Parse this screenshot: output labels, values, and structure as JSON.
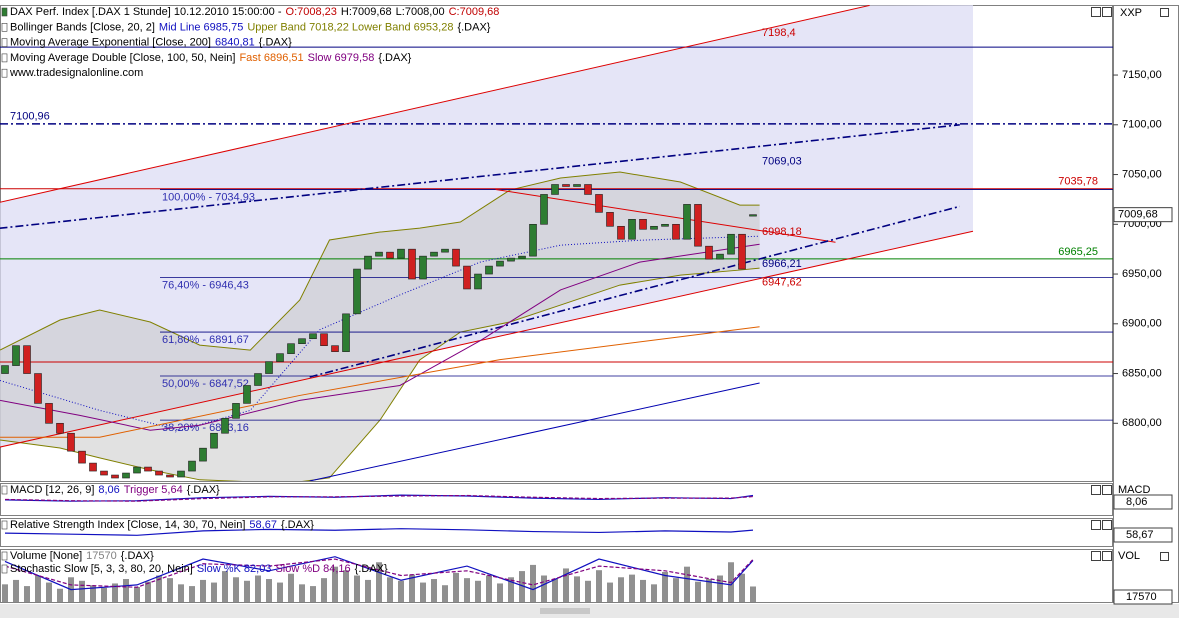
{
  "chart_data": {
    "type": "candlestick",
    "axis_title": "XXP",
    "legend_lines": [
      [
        {
          "text": "DAX Perf. Index [.DAX  1 Stunde] 10.12.2010 15:00:00 -",
          "color": "#000000"
        },
        {
          "text": "O:7008,23",
          "color": "#c00000"
        },
        {
          "text": "H:7009,68",
          "color": "#000000"
        },
        {
          "text": "L:7008,00",
          "color": "#000000"
        },
        {
          "text": "C:7009,68",
          "color": "#c00000"
        }
      ],
      [
        {
          "text": "Bollinger Bands [Close, 20, 2]",
          "color": "#000000"
        },
        {
          "text": "Mid Line 6985,75",
          "color": "#1010c0"
        },
        {
          "text": "Upper Band 7018,22 Lower Band 6953,28",
          "color": "#808000"
        },
        {
          "text": "{.DAX}",
          "color": "#000000"
        }
      ],
      [
        {
          "text": "Moving Average Exponential [Close, 200]",
          "color": "#000000"
        },
        {
          "text": "6840,81",
          "color": "#1010c0"
        },
        {
          "text": "{.DAX}",
          "color": "#000000"
        }
      ],
      [
        {
          "text": "Moving Average Double [Close, 100, 50, Nein]",
          "color": "#000000"
        },
        {
          "text": "Fast 6896,51",
          "color": "#e06000"
        },
        {
          "text": "Slow 6979,58",
          "color": "#800080"
        },
        {
          "text": "{.DAX}",
          "color": "#000000"
        }
      ],
      [
        {
          "text": "www.tradesignalonline.com",
          "color": "#000000"
        }
      ]
    ],
    "ylim": [
      6742,
      7220.4
    ],
    "yticks": [
      {
        "value": 6800,
        "label": "6800,00"
      },
      {
        "value": 6850,
        "label": "6850,00"
      },
      {
        "value": 6900,
        "label": "6900,00"
      },
      {
        "value": 6950,
        "label": "6950,00"
      },
      {
        "value": 7000,
        "label": "7000,00"
      },
      {
        "value": 7050,
        "label": "7050,00"
      },
      {
        "value": 7100,
        "label": "7100,00"
      },
      {
        "value": 7150,
        "label": "7150,00"
      }
    ],
    "up_color": "#2e7d32",
    "down_color": "#d02020",
    "categories": [
      null,
      null,
      null,
      null,
      null,
      null,
      null,
      null,
      null,
      null,
      null,
      null,
      null,
      null,
      null,
      null,
      null,
      null,
      null,
      null,
      null,
      null,
      null,
      null,
      null,
      null,
      null,
      null,
      null,
      null,
      null,
      null,
      null,
      null,
      null,
      null,
      null,
      null,
      null,
      null,
      null,
      null,
      null,
      null,
      null,
      null,
      null,
      null,
      null,
      null,
      null,
      null,
      null,
      null,
      null,
      null,
      null,
      null,
      null,
      null,
      null,
      null,
      null,
      null,
      null,
      null,
      null,
      null,
      null
    ],
    "open": [
      6850,
      6858,
      6878,
      6850,
      6820,
      6800,
      6790,
      6772,
      6760,
      6752,
      6748,
      6745,
      6750,
      6756,
      6752,
      6748,
      6746,
      6752,
      6762,
      6775,
      6790,
      6805,
      6820,
      6838,
      6850,
      6862,
      6870,
      6880,
      6885,
      6890,
      6878,
      6872,
      6910,
      6955,
      6968,
      6972,
      6966,
      6975,
      6945,
      6968,
      6972,
      6975,
      6958,
      6935,
      6950,
      6958,
      6963,
      6966,
      6968,
      7000,
      7030,
      7040,
      7038,
      7040,
      7030,
      7012,
      6998,
      6985,
      7005,
      6995,
      6998,
      7000,
      6985,
      7020,
      6978,
      6965,
      6970,
      6990,
      7008.23
    ],
    "close": [
      6858,
      6878,
      6850,
      6820,
      6800,
      6790,
      6772,
      6760,
      6752,
      6748,
      6745,
      6750,
      6756,
      6752,
      6748,
      6746,
      6752,
      6762,
      6775,
      6790,
      6805,
      6820,
      6838,
      6850,
      6862,
      6870,
      6880,
      6885,
      6890,
      6878,
      6872,
      6910,
      6955,
      6968,
      6972,
      6966,
      6975,
      6945,
      6968,
      6972,
      6975,
      6958,
      6935,
      6950,
      6958,
      6963,
      6966,
      6968,
      7000,
      7030,
      7040,
      7038,
      7040,
      7030,
      7012,
      6998,
      6985,
      7005,
      6995,
      6998,
      7000,
      6985,
      7020,
      6978,
      6965,
      6970,
      6990,
      6955,
      7009.68
    ],
    "levels": [
      {
        "value": 7178.1,
        "color": "#000080"
      },
      {
        "value": 7100.96,
        "label": "7100,96",
        "color": "#000080",
        "dash": true,
        "label_side": "left"
      },
      {
        "value": 7035.78,
        "label": "7035,78",
        "color": "#cc0000",
        "label_side": "right"
      },
      {
        "value": 6965.25,
        "label": "6965,25",
        "color": "#008000",
        "label_side": "right"
      },
      {
        "value": 6861.6,
        "color": "#cc0000"
      }
    ],
    "fib_color": "#000080",
    "fib_label_color": "#3030b0",
    "fib_levels": [
      {
        "value": 7034.93,
        "label": "100,00% - 7034,93"
      },
      {
        "value": 6946.43,
        "label": "76,40% - 6946,43"
      },
      {
        "value": 6891.67,
        "label": "61,80% - 6891,67"
      },
      {
        "value": 6847.52,
        "label": "50,00% - 6847,52"
      },
      {
        "value": 6803.16,
        "label": "38,20% - 6803,16"
      }
    ],
    "point_labels": [
      {
        "value": 7198.4,
        "label": "7198,4",
        "color": "#cc0000"
      },
      {
        "value": 7069.03,
        "label": "7069,03",
        "color": "#000080"
      },
      {
        "value": 6998.18,
        "label": "6998,18",
        "color": "#cc0000"
      },
      {
        "value": 6966.21,
        "label": "6966,21",
        "color": "#000080"
      },
      {
        "value": 6947.62,
        "label": "6947,62",
        "color": "#cc0000"
      }
    ],
    "last_price": {
      "value": 7009.68,
      "label": "7009,68"
    },
    "trendlines": [
      {
        "color": "#dd0000",
        "points": [
          [
            -0.5,
            7022
          ],
          [
            78.6,
            7220
          ]
        ]
      },
      {
        "color": "#dd0000",
        "points": [
          [
            -0.5,
            6776
          ],
          [
            88,
            6993
          ]
        ]
      },
      {
        "color": "#dd0000",
        "points": [
          [
            44.6,
            7035
          ],
          [
            75.5,
            6982
          ]
        ]
      },
      {
        "color": "#000080",
        "dash": true,
        "points": [
          [
            -0.5,
            6996
          ],
          [
            86.8,
            7100
          ]
        ]
      },
      {
        "color": "#000080",
        "dash": true,
        "points": [
          [
            27.7,
            6846.5
          ],
          [
            86.8,
            7018
          ]
        ]
      }
    ],
    "bollinger": {
      "color": "#808000",
      "x": [
        -0.45,
        5,
        8.6,
        13.2,
        17.7,
        22.3,
        26.8,
        29.5,
        34.1,
        37.7,
        41.4,
        45.9,
        50.5,
        55.9,
        61.4,
        66.8,
        68.6
      ],
      "upper": [
        6873.6,
        6903.8,
        6913.8,
        6901.8,
        6878.6,
        6873.6,
        6923.9,
        6984.2,
        6992.2,
        6996.2,
        7002.3,
        7034.4,
        7046.5,
        7052.5,
        7042.5,
        7019.3,
        7019.3
      ],
      "lower": [
        6783.2,
        6775.2,
        6765.2,
        6753.2,
        6743.2,
        6741.2,
        6741.2,
        6745.2,
        6803.3,
        6863.6,
        6891.7,
        6901.8,
        6918.8,
        6938.9,
        6948.9,
        6954,
        6956
      ]
    },
    "overlays": [
      {
        "color": "#1010c0",
        "dash": true,
        "x": [
          -0.45,
          8.6,
          15.9,
          22.3,
          28.6,
          35.9,
          43.2,
          50.5,
          57.7,
          68.6
        ],
        "values": [
          6843,
          6813,
          6793,
          6813,
          6894,
          6929,
          6962,
          6979,
          6984,
          6988
        ]
      },
      {
        "color": "#800080",
        "x": [
          -0.45,
          6.8,
          13.2,
          17.7,
          26.8,
          35.9,
          43.2,
          50.5,
          57.7,
          68.6
        ],
        "values": [
          6823,
          6808,
          6793,
          6798,
          6823,
          6838,
          6883,
          6934,
          6962,
          6980
        ]
      },
      {
        "color": "#e06000",
        "x": [
          -0.45,
          8.6,
          26.8,
          45,
          68.6
        ],
        "values": [
          6786,
          6786,
          6828,
          6864,
          6897
        ]
      },
      {
        "color": "#0000b0",
        "x": [
          27.7,
          68.6
        ],
        "values": [
          6742,
          6840.5
        ]
      }
    ],
    "panels": [
      {
        "axis_title": "MACD",
        "value_label": "8,06",
        "legend_lines": [
          [
            {
              "text": "MACD [12, 26, 9]",
              "color": "#000000"
            },
            {
              "text": "8,06",
              "color": "#1010c0"
            },
            {
              "text": "Trigger 5,64",
              "color": "#800080"
            },
            {
              "text": "{.DAX}",
              "color": "#000000"
            }
          ]
        ],
        "lim": [
          -30,
          30
        ],
        "x": [
          0,
          6,
          12,
          18,
          24,
          30,
          36,
          42,
          48,
          54,
          60,
          66,
          68
        ],
        "series": [
          {
            "color": "#1010c0",
            "values": [
              -2,
              -5,
              -4,
              3,
              6,
              4,
              9,
              7,
              2,
              -1,
              3,
              1,
              8.06
            ]
          },
          {
            "color": "#800080",
            "dash": true,
            "values": [
              -1,
              -4,
              -5,
              1,
              5,
              5,
              7,
              8,
              4,
              1,
              2,
              2,
              5.64
            ]
          }
        ]
      },
      {
        "value_label": "58,67",
        "legend_lines": [
          [
            {
              "text": "Relative Strength Index [Close, 14, 30, 70, Nein]",
              "color": "#000000"
            },
            {
              "text": "58,67",
              "color": "#1010c0"
            },
            {
              "text": "{.DAX}",
              "color": "#000000"
            }
          ]
        ],
        "lim": [
          0,
          100
        ],
        "x": [
          0,
          6,
          12,
          18,
          24,
          30,
          36,
          42,
          48,
          54,
          60,
          66,
          68
        ],
        "series": [
          {
            "color": "#1010c0",
            "values": [
              45,
              40,
              35,
              55,
              62,
              58,
              65,
              60,
              52,
              48,
              55,
              50,
              58.67
            ]
          }
        ]
      },
      {
        "axis_title": "VOL",
        "value_label": "17570",
        "legend_lines": [
          [
            {
              "text": "Volume [None]",
              "color": "#000000"
            },
            {
              "text": "17570",
              "color": "#808080"
            },
            {
              "text": "{.DAX}",
              "color": "#000000"
            }
          ],
          [
            {
              "text": "Stochastic Slow [5, 3, 3, 80, 20, Nein]",
              "color": "#000000"
            },
            {
              "text": "Slow %K 82,03",
              "color": "#1010c0"
            },
            {
              "text": "Slow %D 84,16",
              "color": "#800080"
            },
            {
              "text": "{.DAX}",
              "color": "#000000"
            }
          ]
        ],
        "volume": {
          "color": "#909090",
          "lim": [
            0,
            60000
          ],
          "values": [
            20000,
            25000,
            18000,
            30000,
            22000,
            15000,
            28000,
            24000,
            19000,
            16000,
            21000,
            26000,
            17000,
            23000,
            30000,
            27000,
            20000,
            18000,
            25000,
            22000,
            35000,
            28000,
            24000,
            30000,
            26000,
            22000,
            32000,
            20000,
            18000,
            27000,
            40000,
            36000,
            30000,
            25000,
            45000,
            28000,
            24000,
            31000,
            22000,
            26000,
            19000,
            33000,
            27000,
            24000,
            30000,
            21000,
            28000,
            35000,
            42000,
            30000,
            26000,
            38000,
            29000,
            24000,
            36000,
            22000,
            28000,
            31000,
            25000,
            20000,
            34000,
            27000,
            40000,
            23000,
            26000,
            30000,
            45000,
            32000,
            17570
          ]
        },
        "lim": [
          0,
          100
        ],
        "x": [
          0,
          6,
          12,
          18,
          24,
          30,
          36,
          42,
          48,
          54,
          60,
          66,
          68
        ],
        "series": [
          {
            "color": "#1010c0",
            "values": [
              80,
              20,
              30,
              85,
              60,
              90,
              40,
              70,
              20,
              85,
              50,
              30,
              82.03
            ]
          },
          {
            "color": "#800080",
            "dash": true,
            "values": [
              70,
              30,
              25,
              75,
              70,
              85,
              50,
              60,
              30,
              70,
              60,
              35,
              84.16
            ]
          }
        ]
      }
    ]
  }
}
